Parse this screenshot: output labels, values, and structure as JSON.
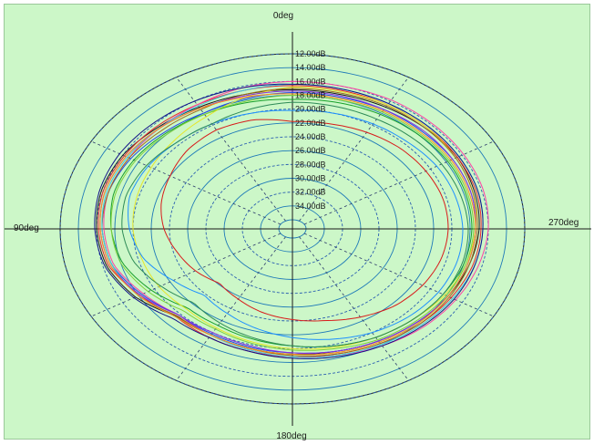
{
  "chart_data": {
    "type": "polar-line",
    "angle_labels": {
      "top": "0deg",
      "left": "90deg",
      "bottom": "180deg",
      "right": "270deg"
    },
    "angle_direction": "counter-clockwise from top",
    "radial_tick_labels": [
      "12.00dB",
      "14.00dB",
      "16.00dB",
      "18.00dB",
      "20.00dB",
      "22.00dB",
      "24.00dB",
      "26.00dB",
      "28.00dB",
      "30.00dB",
      "32.00dB",
      "34.00dB"
    ],
    "radial_ticks_db": [
      12,
      14,
      16,
      18,
      20,
      22,
      24,
      26,
      28,
      30,
      32,
      34
    ],
    "radial_range_db": [
      12,
      36
    ],
    "radial_direction": "dB increases toward center",
    "grid": {
      "rings": true,
      "spokes_every_deg": 30,
      "outer_ring_color": "#222222",
      "solid_ring_color": "#1f7ab8",
      "dashed_ring_color": "#2a5fb0",
      "spoke_color": "#2a3a6a"
    },
    "background_color": "#ccf7c8",
    "series": [
      {
        "color": "#1a1a1a",
        "db": [
          17.2,
          17.2,
          17.0,
          16.6,
          16.0,
          15.8,
          16.0,
          16.4,
          17.6,
          19.5,
          19.6,
          19.4,
          19.2,
          19.0,
          18.6,
          18.2,
          17.8,
          17.4,
          17.0,
          16.8,
          16.6,
          16.8,
          17.0,
          17.2
        ]
      },
      {
        "color": "#e8222e",
        "db": [
          16.6,
          16.6,
          16.6,
          16.4,
          16.2,
          16.0,
          16.2,
          16.6,
          18.2,
          19.4,
          19.2,
          19.0,
          18.8,
          18.6,
          18.2,
          17.8,
          17.4,
          17.0,
          16.8,
          16.6,
          16.6,
          16.6,
          16.6,
          16.6
        ]
      },
      {
        "color": "#ff3fa5",
        "db": [
          16.0,
          16.2,
          16.6,
          16.8,
          16.8,
          16.6,
          16.8,
          17.2,
          18.6,
          19.8,
          19.6,
          19.2,
          18.8,
          18.4,
          17.8,
          17.2,
          16.8,
          16.4,
          16.0,
          15.8,
          15.8,
          15.8,
          15.8,
          16.0
        ]
      },
      {
        "color": "#2346e8",
        "db": [
          17.6,
          17.8,
          18.0,
          17.6,
          17.0,
          16.6,
          16.6,
          17.0,
          18.4,
          19.8,
          19.8,
          19.6,
          19.4,
          19.0,
          18.6,
          18.2,
          17.8,
          17.6,
          17.4,
          17.2,
          17.2,
          17.4,
          17.4,
          17.6
        ]
      },
      {
        "color": "#19a12b",
        "db": [
          18.6,
          18.4,
          18.2,
          17.8,
          17.4,
          17.2,
          17.6,
          18.2,
          19.6,
          21.2,
          21.2,
          20.8,
          20.4,
          19.8,
          19.2,
          18.8,
          18.4,
          18.0,
          17.8,
          17.8,
          17.8,
          18.0,
          18.2,
          18.4
        ]
      },
      {
        "color": "#e6e62a",
        "db": [
          16.8,
          17.6,
          18.6,
          19.2,
          19.6,
          19.8,
          20.0,
          20.4,
          20.6,
          21.0,
          20.8,
          20.4,
          20.0,
          19.6,
          19.2,
          18.8,
          18.2,
          17.8,
          17.4,
          17.0,
          16.8,
          16.6,
          16.6,
          16.8
        ]
      },
      {
        "color": "#a06e1e",
        "db": [
          17.0,
          17.2,
          17.4,
          17.2,
          16.8,
          16.6,
          16.6,
          17.0,
          18.0,
          19.6,
          19.6,
          19.4,
          19.0,
          18.6,
          18.2,
          17.8,
          17.6,
          17.4,
          17.2,
          17.0,
          16.8,
          16.8,
          16.8,
          17.0
        ]
      },
      {
        "color": "#3fc7e0",
        "db": [
          16.4,
          16.6,
          16.8,
          16.8,
          16.6,
          16.4,
          16.6,
          17.0,
          18.0,
          19.4,
          19.6,
          19.2,
          18.8,
          18.4,
          18.0,
          17.6,
          17.2,
          16.8,
          16.6,
          16.4,
          16.4,
          16.4,
          16.4,
          16.4
        ]
      },
      {
        "color": "#8a2be2",
        "db": [
          17.4,
          17.4,
          17.2,
          16.8,
          16.4,
          16.2,
          16.4,
          16.8,
          18.2,
          19.8,
          20.0,
          19.8,
          19.4,
          19.0,
          18.6,
          18.2,
          17.8,
          17.6,
          17.4,
          17.2,
          17.2,
          17.2,
          17.4,
          17.4
        ]
      },
      {
        "color": "#ff8c1a",
        "db": [
          17.8,
          17.6,
          17.2,
          16.8,
          16.4,
          16.2,
          16.4,
          16.8,
          18.0,
          19.4,
          19.6,
          19.4,
          19.2,
          18.8,
          18.4,
          18.0,
          17.8,
          17.6,
          17.4,
          17.4,
          17.4,
          17.6,
          17.6,
          17.8
        ]
      },
      {
        "color": "#111188",
        "db": [
          16.4,
          16.2,
          16.0,
          15.8,
          15.6,
          15.6,
          15.8,
          16.2,
          17.4,
          19.0,
          19.2,
          19.0,
          18.6,
          18.2,
          17.8,
          17.4,
          17.0,
          16.8,
          16.6,
          16.4,
          16.4,
          16.4,
          16.4,
          16.4
        ]
      },
      {
        "color": "#7fd13b",
        "db": [
          18.0,
          18.2,
          18.2,
          18.0,
          17.6,
          17.4,
          17.6,
          18.0,
          19.2,
          20.6,
          20.6,
          20.2,
          19.8,
          19.4,
          18.8,
          18.4,
          18.0,
          17.8,
          17.6,
          17.6,
          17.6,
          17.8,
          17.8,
          18.0
        ]
      },
      {
        "color": "#d81b1b",
        "db": [
          21.8,
          21.0,
          20.8,
          21.2,
          22.0,
          22.6,
          23.4,
          24.4,
          25.2,
          26.2,
          25.6,
          24.8,
          24.2,
          23.6,
          22.6,
          21.6,
          21.0,
          20.6,
          20.4,
          20.4,
          20.6,
          20.8,
          21.2,
          21.6
        ]
      },
      {
        "color": "#1e90ff",
        "db": [
          20.2,
          20.0,
          19.8,
          19.6,
          19.2,
          19.0,
          19.6,
          20.6,
          22.4,
          23.8,
          23.2,
          22.4,
          21.6,
          20.8,
          20.0,
          19.4,
          19.0,
          18.8,
          18.8,
          19.0,
          19.2,
          19.6,
          19.8,
          20.0
        ]
      },
      {
        "color": "#2e8b57",
        "db": [
          19.0,
          19.4,
          19.8,
          19.6,
          19.0,
          18.6,
          18.8,
          19.4,
          20.8,
          22.2,
          21.6,
          21.0,
          20.4,
          19.8,
          19.2,
          18.8,
          18.4,
          18.2,
          18.2,
          18.4,
          18.6,
          18.8,
          19.0,
          19.0
        ]
      }
    ]
  }
}
